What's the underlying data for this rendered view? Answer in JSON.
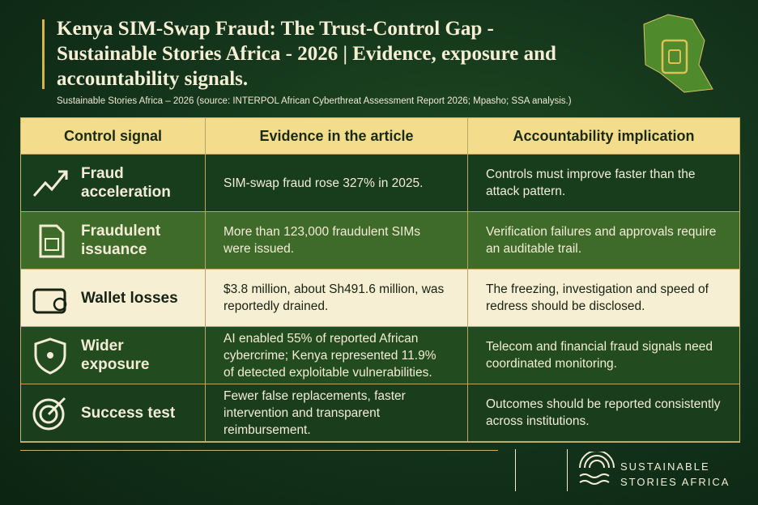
{
  "header": {
    "title": "Kenya SIM-Swap Fraud: The Trust-Control Gap - Sustainable Stories Africa - 2026 | Evidence, exposure and accountability signals.",
    "subtitle": "Sustainable Stories Africa – 2026 (source: INTERPOL African Cyberthreat Assessment Report 2026; Mpasho; SSA analysis.)"
  },
  "table": {
    "columns": [
      "Control signal",
      "Evidence in the article",
      "Accountability implication"
    ],
    "rows": [
      [
        "Fraud acceleration",
        "SIM-swap fraud rose 327% in 2025.",
        "Controls must improve faster than the attack pattern."
      ],
      [
        "Fraudulent issuance",
        "More than 123,000 fraudulent SIMs were issued.",
        "Verification failures and approvals require an auditable trail."
      ],
      [
        "Wallet losses",
        "$3.8 million, about Sh491.6 million, was reportedly drained.",
        "The freezing, investigation and speed of redress should be disclosed."
      ],
      [
        "Wider exposure",
        "AI enabled 55% of reported African cybercrime; Kenya represented 11.9% of detected exploitable vulnerabilities.",
        "Telecom and financial fraud signals need coordinated monitoring."
      ],
      [
        "Success test",
        "Fewer false replacements, faster intervention and transparent reimbursement.",
        "Outcomes should be reported consistently across institutions."
      ]
    ]
  },
  "footer": {
    "brand": [
      "SUSTAINABLE",
      "STORIES AFRICA"
    ]
  }
}
